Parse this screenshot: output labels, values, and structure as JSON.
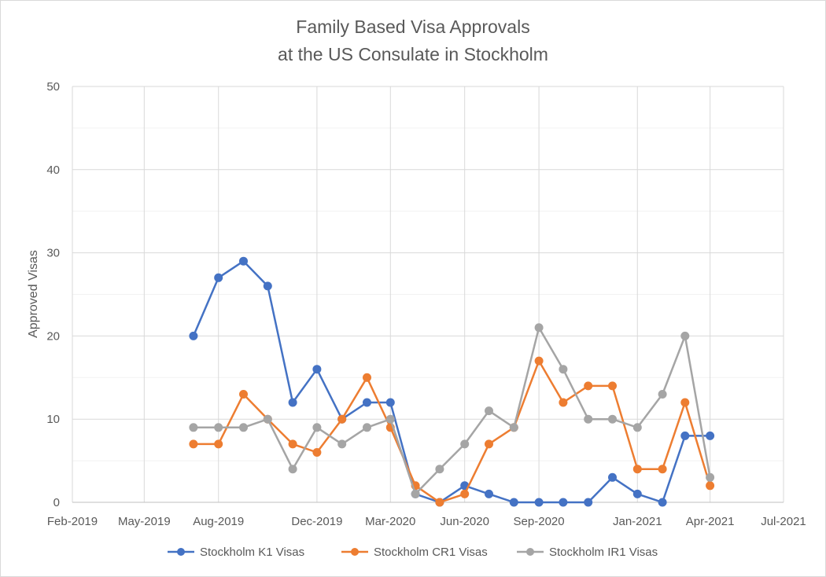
{
  "chart_data": {
    "type": "line",
    "title_lines": [
      "Family Based Visa Approvals",
      "at the US Consulate in Stockholm"
    ],
    "xlabel": "",
    "ylabel": "Approved Visas",
    "ylim": [
      0,
      50
    ],
    "y_ticks": [
      0,
      10,
      20,
      30,
      40,
      50
    ],
    "x_ticks": [
      "Feb-2019",
      "May-2019",
      "Aug-2019",
      "Dec-2019",
      "Mar-2020",
      "Jun-2020",
      "Sep-2020",
      "Jan-2021",
      "Apr-2021",
      "Jul-2021"
    ],
    "grid": true,
    "legend_position": "bottom",
    "x": [
      "Jul-2019",
      "Aug-2019",
      "Sep-2019",
      "Oct-2019",
      "Nov-2019",
      "Dec-2019",
      "Jan-2020",
      "Feb-2020",
      "Mar-2020",
      "Apr-2020",
      "May-2020",
      "Jun-2020",
      "Jul-2020",
      "Aug-2020",
      "Sep-2020",
      "Oct-2020",
      "Nov-2020",
      "Dec-2020",
      "Jan-2021",
      "Feb-2021",
      "Mar-2021",
      "Apr-2021"
    ],
    "series": [
      {
        "name": "Stockholm K1 Visas",
        "color": "#4472C4",
        "values": [
          20,
          27,
          29,
          26,
          12,
          16,
          10,
          12,
          12,
          1,
          0,
          2,
          1,
          0,
          0,
          0,
          0,
          3,
          1,
          0,
          8,
          8
        ]
      },
      {
        "name": "Stockholm CR1 Visas",
        "color": "#ED7D31",
        "values": [
          7,
          7,
          13,
          10,
          7,
          6,
          10,
          15,
          9,
          2,
          0,
          1,
          7,
          9,
          17,
          12,
          14,
          14,
          4,
          4,
          12,
          2
        ]
      },
      {
        "name": "Stockholm IR1 Visas",
        "color": "#A5A5A5",
        "values": [
          9,
          9,
          9,
          10,
          4,
          9,
          7,
          9,
          10,
          1,
          4,
          7,
          11,
          9,
          21,
          16,
          10,
          10,
          9,
          13,
          20,
          3
        ]
      }
    ]
  }
}
